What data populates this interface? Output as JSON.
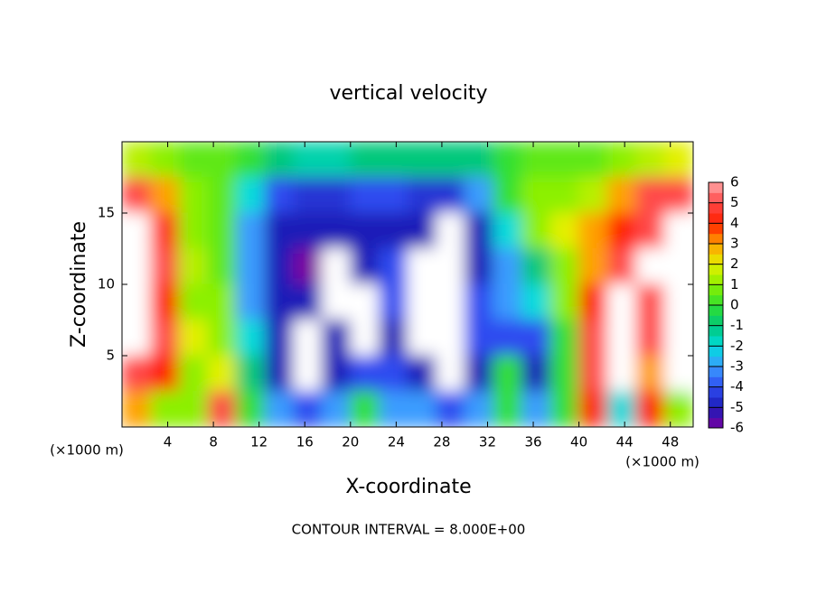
{
  "chart_data": {
    "type": "heatmap",
    "title": "vertical velocity",
    "x_label": "X-coordinate",
    "y_label": "Z-coordinate",
    "x_unit": "(×1000 m)",
    "y_unit": "(×1000 m)",
    "footer": "CONTOUR INTERVAL = 8.000E+00",
    "x": [
      1.25,
      3.75,
      6.25,
      8.75,
      11.25,
      13.75,
      16.25,
      18.75,
      21.25,
      23.75,
      26.25,
      28.75,
      31.25,
      33.75,
      36.25,
      38.75,
      41.25,
      43.75,
      46.25,
      48.75
    ],
    "y": [
      18.75,
      16.25,
      13.75,
      11.25,
      8.75,
      6.25,
      3.75,
      1.25
    ],
    "values": [
      [
        1.5,
        1,
        0.5,
        0.5,
        0,
        -1,
        -1.5,
        -1.5,
        -1,
        -1,
        -1,
        -1,
        -1,
        0,
        0.5,
        0.5,
        0.5,
        1,
        1.5,
        2
      ],
      [
        5,
        3,
        1,
        0.5,
        -2,
        -4,
        -4.5,
        -4.5,
        -4,
        -4,
        -4.5,
        -4.5,
        -3,
        0,
        1,
        1,
        1.5,
        3,
        5,
        5
      ],
      [
        8,
        4.5,
        1,
        0.5,
        -3,
        -5,
        -5,
        -5,
        -5,
        -5,
        -5,
        -8,
        -5,
        -2,
        1,
        2,
        3,
        4,
        5,
        8
      ],
      [
        8,
        5,
        1.5,
        0.5,
        -3,
        -5,
        -6,
        -8,
        -5,
        -4,
        -8,
        -8,
        -5,
        -3,
        -1,
        1,
        3,
        5,
        8,
        8
      ],
      [
        8,
        4,
        1,
        1,
        -3,
        -5,
        -5,
        -8,
        -8,
        -4,
        -8,
        -8,
        -4,
        -3,
        -2,
        1,
        4,
        8,
        5,
        8
      ],
      [
        8,
        5,
        2,
        1,
        -2,
        -5,
        -8,
        -5,
        -8,
        -5,
        -8,
        -8,
        -4,
        -4,
        -4,
        0,
        5,
        8,
        5,
        8
      ],
      [
        5,
        4,
        1,
        2,
        -1,
        -5,
        -8,
        -5,
        -4,
        -4,
        -5,
        -8,
        -5,
        0,
        -5,
        0,
        5,
        8,
        3,
        8
      ],
      [
        3,
        1,
        1,
        5,
        0,
        -3,
        -4,
        -3,
        0,
        -3,
        -3,
        -4,
        -3,
        0,
        -3,
        0,
        4,
        -2,
        4,
        1
      ]
    ],
    "xlim": [
      0,
      50
    ],
    "ylim": [
      0,
      20
    ],
    "xticks": [
      4,
      8,
      12,
      16,
      20,
      24,
      28,
      32,
      36,
      40,
      44,
      48
    ],
    "yticks": [
      5,
      10,
      15
    ],
    "clim": [
      -6,
      6
    ],
    "cticks": [
      -6,
      -5,
      -4,
      -3,
      -2,
      -1,
      0,
      1,
      2,
      3,
      4,
      5,
      6
    ]
  }
}
